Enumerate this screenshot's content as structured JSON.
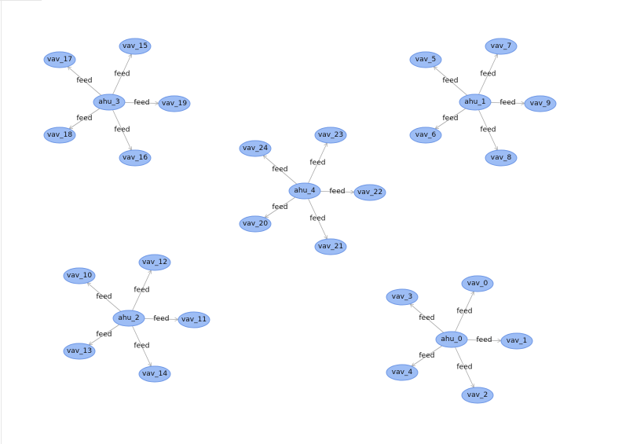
{
  "graph": {
    "node_style": {
      "fill": "#9dbdf5",
      "stroke": "#6f98e6"
    },
    "edge_color": "#a8a8a8",
    "clusters": [
      {
        "hub": "ahu_3",
        "leaves": [
          "vav_15",
          "vav_17",
          "vav_19",
          "vav_18",
          "vav_16"
        ],
        "edge_label": "feed"
      },
      {
        "hub": "ahu_1",
        "leaves": [
          "vav_7",
          "vav_5",
          "vav_9",
          "vav_6",
          "vav_8"
        ],
        "edge_label": "feed"
      },
      {
        "hub": "ahu_4",
        "leaves": [
          "vav_23",
          "vav_24",
          "vav_22",
          "vav_20",
          "vav_21"
        ],
        "edge_label": "feed"
      },
      {
        "hub": "ahu_2",
        "leaves": [
          "vav_12",
          "vav_10",
          "vav_11",
          "vav_13",
          "vav_14"
        ],
        "edge_label": "feed"
      },
      {
        "hub": "ahu_0",
        "leaves": [
          "vav_0",
          "vav_3",
          "vav_1",
          "vav_4",
          "vav_2"
        ],
        "edge_label": "feed"
      }
    ]
  }
}
